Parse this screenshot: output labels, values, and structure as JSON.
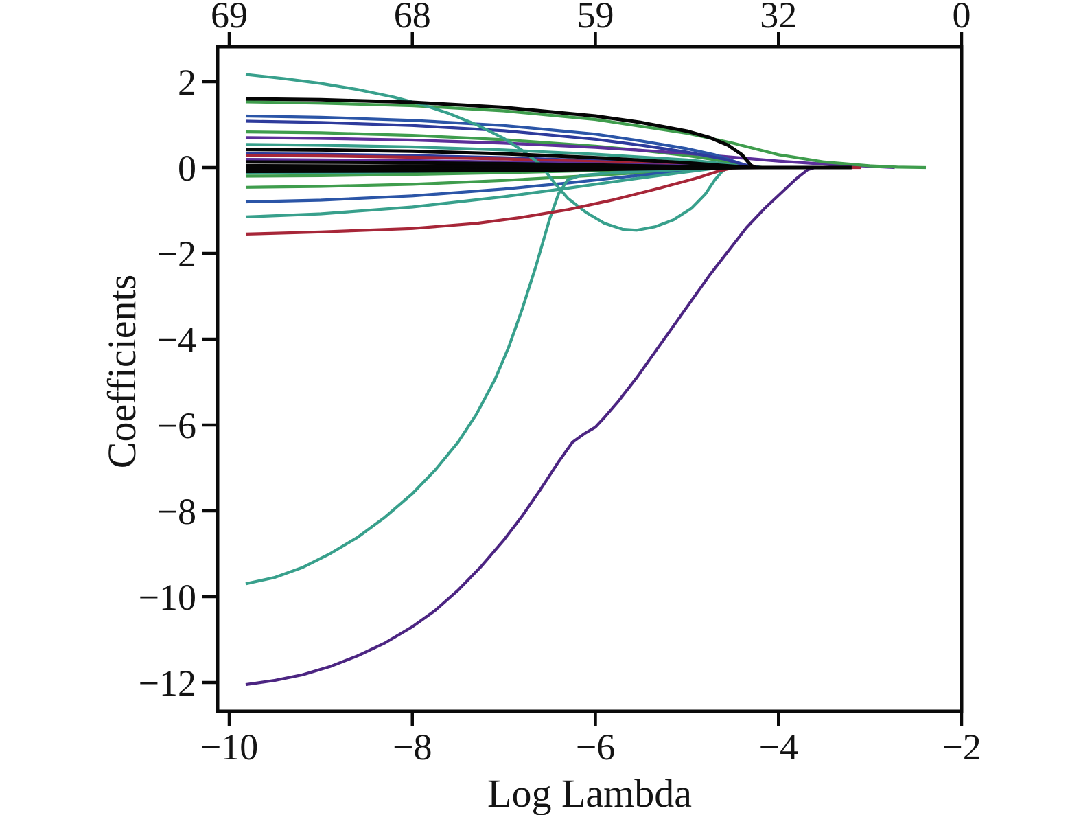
{
  "page": {
    "background": "#ffffff"
  },
  "chart_data": {
    "type": "line",
    "title": "",
    "description": "LASSO regularization coefficient paths",
    "xlabel": "Log Lambda",
    "ylabel": "Coefficients",
    "grid": false,
    "legend": "none",
    "x_axis": {
      "label": "Log Lambda",
      "ticks": [
        -10,
        -8,
        -6,
        -4,
        -2
      ],
      "tick_labels": [
        "−10",
        "−8",
        "−6",
        "−4",
        "−2"
      ],
      "range": [
        -10.13,
        -2.0
      ]
    },
    "y_axis": {
      "label": "Coefficients",
      "ticks": [
        2,
        0,
        -2,
        -4,
        -6,
        -8,
        -10,
        -12
      ],
      "tick_labels": [
        "2",
        "0",
        "−2",
        "−4",
        "−6",
        "−8",
        "−10",
        "−12"
      ],
      "range": [
        -12.67,
        2.82
      ]
    },
    "top_axis": {
      "ticks": [
        -10,
        -8,
        -6,
        -4,
        -2
      ],
      "tick_labels": [
        "69",
        "68",
        "59",
        "32",
        "0"
      ]
    },
    "colors": {
      "teal": "#38a08c",
      "green": "#3f9d4d",
      "blue": "#2b55a7",
      "navy": "#2e3b9c",
      "violet": "#5c2f9a",
      "dark_purple": "#4c2582",
      "red": "#a72638",
      "black": "#050505"
    },
    "series": [
      {
        "name": "green-flat-2",
        "color": "#3f9d4d",
        "points": [
          [
            -9.82,
            0.83
          ],
          [
            -9,
            0.81
          ],
          [
            -8,
            0.75
          ],
          [
            -7,
            0.65
          ],
          [
            -6,
            0.5
          ],
          [
            -5.5,
            0.4
          ],
          [
            -5,
            0.28
          ],
          [
            -4.6,
            0.15
          ],
          [
            -4.35,
            0.04
          ],
          [
            -4.15,
            0
          ]
        ]
      },
      {
        "name": "violet-long",
        "color": "#5c2f9a",
        "points": [
          [
            -9.82,
            0.7
          ],
          [
            -9,
            0.68
          ],
          [
            -8,
            0.64
          ],
          [
            -7,
            0.57
          ],
          [
            -6,
            0.47
          ],
          [
            -5,
            0.33
          ],
          [
            -4.5,
            0.24
          ],
          [
            -4,
            0.15
          ],
          [
            -3.5,
            0.08
          ],
          [
            -3,
            0.03
          ],
          [
            -2.73,
            0
          ]
        ]
      },
      {
        "name": "teal-flat",
        "color": "#38a08c",
        "points": [
          [
            -9.82,
            0.54
          ],
          [
            -9,
            0.52
          ],
          [
            -8,
            0.48
          ],
          [
            -7,
            0.41
          ],
          [
            -6,
            0.31
          ],
          [
            -5,
            0.18
          ],
          [
            -4.6,
            0.09
          ],
          [
            -4.4,
            0.02
          ],
          [
            -4.25,
            0
          ]
        ]
      },
      {
        "name": "navy-short",
        "color": "#2e3b9c",
        "points": [
          [
            -9.82,
            0.32
          ],
          [
            -9,
            0.31
          ],
          [
            -8,
            0.28
          ],
          [
            -7,
            0.23
          ],
          [
            -6,
            0.16
          ],
          [
            -5.5,
            0.11
          ],
          [
            -5,
            0.05
          ],
          [
            -4.7,
            0
          ]
        ]
      },
      {
        "name": "red-flat",
        "color": "#a72638",
        "points": [
          [
            -9.82,
            0.28
          ],
          [
            -9,
            0.27
          ],
          [
            -8,
            0.24
          ],
          [
            -7,
            0.2
          ],
          [
            -6,
            0.14
          ],
          [
            -5,
            0.06
          ],
          [
            -4.5,
            0.01
          ],
          [
            -4.1,
            0
          ],
          [
            -3.1,
            0
          ]
        ]
      },
      {
        "name": "violet-small",
        "color": "#5c2f9a",
        "points": [
          [
            -9.82,
            0.19
          ],
          [
            -9,
            0.18
          ],
          [
            -8,
            0.16
          ],
          [
            -7,
            0.13
          ],
          [
            -6,
            0.09
          ],
          [
            -5,
            0.04
          ],
          [
            -4.5,
            0
          ]
        ]
      },
      {
        "name": "teal-near-zero",
        "color": "#38a08c",
        "points": [
          [
            -9.82,
            -0.13
          ],
          [
            -9,
            -0.12
          ],
          [
            -8,
            -0.1
          ],
          [
            -7,
            -0.07
          ],
          [
            -6,
            -0.04
          ],
          [
            -5,
            -0.01
          ],
          [
            -4.5,
            0
          ],
          [
            -3.6,
            0
          ]
        ]
      },
      {
        "name": "green-near-zero",
        "color": "#3f9d4d",
        "points": [
          [
            -9.82,
            -0.2
          ],
          [
            -9,
            -0.19
          ],
          [
            -8,
            -0.16
          ],
          [
            -7,
            -0.12
          ],
          [
            -6,
            -0.07
          ],
          [
            -5,
            -0.02
          ],
          [
            -4.6,
            0
          ],
          [
            -3.9,
            0
          ]
        ]
      },
      {
        "name": "green-low",
        "color": "#3f9d4d",
        "points": [
          [
            -9.82,
            -0.46
          ],
          [
            -9,
            -0.44
          ],
          [
            -8,
            -0.39
          ],
          [
            -7,
            -0.3
          ],
          [
            -6,
            -0.18
          ],
          [
            -5.5,
            -0.12
          ],
          [
            -5,
            -0.06
          ],
          [
            -4.6,
            -0.01
          ],
          [
            -4.4,
            0
          ]
        ]
      },
      {
        "name": "blue-low",
        "color": "#2b55a7",
        "points": [
          [
            -9.82,
            -0.8
          ],
          [
            -9,
            -0.76
          ],
          [
            -8,
            -0.66
          ],
          [
            -7,
            -0.5
          ],
          [
            -6.3,
            -0.36
          ],
          [
            -5.6,
            -0.2
          ],
          [
            -5,
            -0.07
          ],
          [
            -4.7,
            -0.01
          ],
          [
            -4.5,
            0
          ]
        ]
      },
      {
        "name": "teal-rising-low",
        "color": "#38a08c",
        "points": [
          [
            -9.82,
            -1.15
          ],
          [
            -9,
            -1.08
          ],
          [
            -8,
            -0.92
          ],
          [
            -7,
            -0.68
          ],
          [
            -6.3,
            -0.48
          ],
          [
            -5.6,
            -0.27
          ],
          [
            -5,
            -0.1
          ],
          [
            -4.7,
            -0.02
          ],
          [
            -4.5,
            0
          ]
        ]
      },
      {
        "name": "blue-top",
        "color": "#2b55a7",
        "points": [
          [
            -9.82,
            1.2
          ],
          [
            -9,
            1.17
          ],
          [
            -8,
            1.1
          ],
          [
            -7,
            0.98
          ],
          [
            -6,
            0.78
          ],
          [
            -5.5,
            0.62
          ],
          [
            -5,
            0.44
          ],
          [
            -4.7,
            0.3
          ],
          [
            -4.45,
            0.12
          ],
          [
            -4.3,
            0.02
          ],
          [
            -4.15,
            0
          ]
        ]
      },
      {
        "name": "navy-top",
        "color": "#2e3b9c",
        "points": [
          [
            -9.82,
            1.08
          ],
          [
            -9,
            1.05
          ],
          [
            -8,
            0.98
          ],
          [
            -7,
            0.86
          ],
          [
            -6,
            0.66
          ],
          [
            -5.5,
            0.52
          ],
          [
            -5,
            0.36
          ],
          [
            -4.6,
            0.2
          ],
          [
            -4.35,
            0.05
          ],
          [
            -4.2,
            0
          ]
        ]
      },
      {
        "name": "green-top",
        "color": "#3f9d4d",
        "points": [
          [
            -9.82,
            1.53
          ],
          [
            -9,
            1.5
          ],
          [
            -8,
            1.44
          ],
          [
            -7,
            1.32
          ],
          [
            -6,
            1.12
          ],
          [
            -5,
            0.8
          ],
          [
            -4.5,
            0.57
          ],
          [
            -4,
            0.3
          ],
          [
            -3.5,
            0.13
          ],
          [
            -3,
            0.04
          ],
          [
            -2.7,
            0.01
          ],
          [
            -2.39,
            0
          ]
        ]
      },
      {
        "name": "teal-descending",
        "color": "#38a08c",
        "points": [
          [
            -9.82,
            2.17
          ],
          [
            -9.4,
            2.07
          ],
          [
            -9,
            1.96
          ],
          [
            -8.6,
            1.82
          ],
          [
            -8.2,
            1.64
          ],
          [
            -7.9,
            1.47
          ],
          [
            -7.6,
            1.26
          ],
          [
            -7.3,
            1.0
          ],
          [
            -7,
            0.68
          ],
          [
            -6.8,
            0.4
          ],
          [
            -6.6,
            0.07
          ],
          [
            -6.45,
            -0.35
          ],
          [
            -6.3,
            -0.72
          ],
          [
            -6.1,
            -1.05
          ],
          [
            -5.9,
            -1.3
          ],
          [
            -5.7,
            -1.44
          ],
          [
            -5.55,
            -1.46
          ],
          [
            -5.35,
            -1.38
          ],
          [
            -5.15,
            -1.22
          ],
          [
            -4.95,
            -0.95
          ],
          [
            -4.8,
            -0.62
          ],
          [
            -4.7,
            -0.3
          ],
          [
            -4.62,
            -0.1
          ],
          [
            -4.55,
            0
          ],
          [
            -4.35,
            0
          ]
        ]
      },
      {
        "name": "teal-ascending",
        "color": "#38a08c",
        "points": [
          [
            -9.82,
            -9.7
          ],
          [
            -9.5,
            -9.55
          ],
          [
            -9.2,
            -9.32
          ],
          [
            -8.9,
            -9.0
          ],
          [
            -8.6,
            -8.62
          ],
          [
            -8.3,
            -8.15
          ],
          [
            -8,
            -7.6
          ],
          [
            -7.75,
            -7.05
          ],
          [
            -7.5,
            -6.4
          ],
          [
            -7.3,
            -5.75
          ],
          [
            -7.1,
            -4.95
          ],
          [
            -6.95,
            -4.2
          ],
          [
            -6.8,
            -3.3
          ],
          [
            -6.65,
            -2.3
          ],
          [
            -6.5,
            -1.2
          ],
          [
            -6.4,
            -0.6
          ],
          [
            -6.3,
            -0.28
          ],
          [
            -6.15,
            -0.18
          ],
          [
            -5.8,
            -0.12
          ],
          [
            -5.3,
            -0.07
          ],
          [
            -4.9,
            -0.03
          ],
          [
            -4.6,
            0
          ],
          [
            -4.45,
            0
          ]
        ]
      },
      {
        "name": "purple-ascending",
        "color": "#4c2582",
        "points": [
          [
            -9.82,
            -12.05
          ],
          [
            -9.5,
            -11.95
          ],
          [
            -9.2,
            -11.82
          ],
          [
            -8.9,
            -11.63
          ],
          [
            -8.6,
            -11.38
          ],
          [
            -8.3,
            -11.08
          ],
          [
            -8,
            -10.7
          ],
          [
            -7.75,
            -10.32
          ],
          [
            -7.5,
            -9.85
          ],
          [
            -7.25,
            -9.3
          ],
          [
            -7,
            -8.68
          ],
          [
            -6.8,
            -8.12
          ],
          [
            -6.6,
            -7.5
          ],
          [
            -6.4,
            -6.85
          ],
          [
            -6.25,
            -6.4
          ],
          [
            -6.12,
            -6.2
          ],
          [
            -6,
            -6.05
          ],
          [
            -5.9,
            -5.82
          ],
          [
            -5.75,
            -5.45
          ],
          [
            -5.55,
            -4.9
          ],
          [
            -5.35,
            -4.3
          ],
          [
            -5.15,
            -3.7
          ],
          [
            -4.95,
            -3.1
          ],
          [
            -4.75,
            -2.5
          ],
          [
            -4.55,
            -1.95
          ],
          [
            -4.35,
            -1.4
          ],
          [
            -4.15,
            -0.95
          ],
          [
            -3.95,
            -0.55
          ],
          [
            -3.8,
            -0.25
          ],
          [
            -3.68,
            -0.05
          ],
          [
            -3.6,
            0
          ],
          [
            -3.45,
            0
          ]
        ]
      },
      {
        "name": "red-rising",
        "color": "#a72638",
        "points": [
          [
            -9.82,
            -1.55
          ],
          [
            -9,
            -1.5
          ],
          [
            -8,
            -1.42
          ],
          [
            -7.3,
            -1.3
          ],
          [
            -6.8,
            -1.16
          ],
          [
            -6.3,
            -0.98
          ],
          [
            -5.8,
            -0.75
          ],
          [
            -5.3,
            -0.48
          ],
          [
            -4.9,
            -0.25
          ],
          [
            -4.65,
            -0.08
          ],
          [
            -4.5,
            -0.01
          ],
          [
            -4.35,
            0
          ]
        ]
      },
      {
        "name": "black-top",
        "color": "#050505",
        "points": [
          [
            -9.82,
            1.6
          ],
          [
            -9,
            1.58
          ],
          [
            -8,
            1.52
          ],
          [
            -7,
            1.4
          ],
          [
            -6,
            1.2
          ],
          [
            -5.5,
            1.05
          ],
          [
            -5,
            0.85
          ],
          [
            -4.75,
            0.7
          ],
          [
            -4.55,
            0.52
          ],
          [
            -4.4,
            0.3
          ],
          [
            -4.3,
            0.05
          ],
          [
            -4.25,
            0
          ],
          [
            -3.2,
            0
          ]
        ]
      },
      {
        "name": "black-mid",
        "color": "#050505",
        "points": [
          [
            -9.82,
            0.42
          ],
          [
            -9,
            0.41
          ],
          [
            -8,
            0.38
          ],
          [
            -7,
            0.32
          ],
          [
            -6,
            0.23
          ],
          [
            -5,
            0.11
          ],
          [
            -4.5,
            0.03
          ],
          [
            -4.3,
            0
          ]
        ]
      },
      {
        "name": "black-small-1",
        "color": "#050505",
        "points": [
          [
            -9.82,
            0.13
          ],
          [
            -8.5,
            0.12
          ],
          [
            -7,
            0.09
          ],
          [
            -6,
            0.06
          ],
          [
            -5,
            0.02
          ],
          [
            -4.4,
            0
          ],
          [
            -3.5,
            0
          ]
        ]
      },
      {
        "name": "black-small-2",
        "color": "#050505",
        "points": [
          [
            -9.82,
            0.04
          ],
          [
            -8,
            0.03
          ],
          [
            -6,
            0.02
          ],
          [
            -5,
            0.01
          ],
          [
            -4.3,
            0
          ],
          [
            -3.3,
            0
          ]
        ]
      },
      {
        "name": "black-small-3",
        "color": "#050505",
        "points": [
          [
            -9.82,
            -0.04
          ],
          [
            -8,
            -0.04
          ],
          [
            -6.5,
            -0.03
          ],
          [
            -5,
            -0.01
          ],
          [
            -4.4,
            0
          ]
        ]
      },
      {
        "name": "black-small-4",
        "color": "#050505",
        "points": [
          [
            -9.82,
            -0.09
          ],
          [
            -8,
            -0.08
          ],
          [
            -6.5,
            -0.06
          ],
          [
            -5.5,
            -0.03
          ],
          [
            -4.8,
            -0.01
          ],
          [
            -4.2,
            0
          ]
        ]
      }
    ]
  }
}
